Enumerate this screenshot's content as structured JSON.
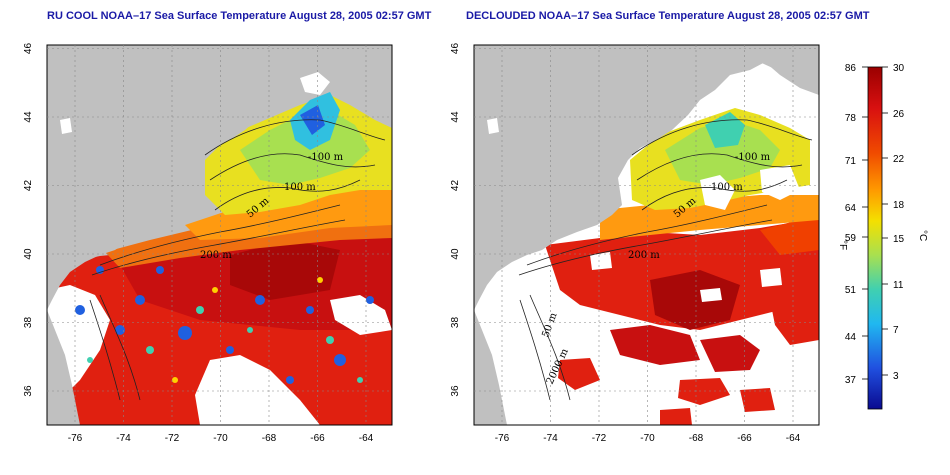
{
  "panels": [
    {
      "title": "RU COOL NOAA–17 Sea Surface Temperature August 28, 2005 02:57 GMT"
    },
    {
      "title": "DECLOUDED NOAA–17 Sea Surface Temperature August 28, 2005 02:57 GMT"
    }
  ],
  "axes": {
    "lon_ticks": [
      "-76",
      "-74",
      "-72",
      "-70",
      "-68",
      "-66",
      "-64"
    ],
    "lat_ticks": [
      "36",
      "38",
      "40",
      "42",
      "44",
      "46"
    ]
  },
  "contour_labels": {
    "left": [
      "-100 m",
      "100 m",
      "50 m",
      "200 m"
    ],
    "right": [
      "-100 m",
      "100 m",
      "50 m",
      "200 m",
      "50 m",
      "2000 m"
    ]
  },
  "colorbar": {
    "f_ticks": [
      "86",
      "78",
      "71",
      "64",
      "59",
      "51",
      "44",
      "37"
    ],
    "c_ticks": [
      "30",
      "26",
      "22",
      "18",
      "15",
      "11",
      "7",
      "3"
    ],
    "f_unit": "°F",
    "c_unit": "°C",
    "colors": [
      "#b00000",
      "#e01010",
      "#f04000",
      "#ff9000",
      "#ffd000",
      "#c8e040",
      "#40d0a0",
      "#20b0f0",
      "#2050e0",
      "#1010a0"
    ]
  },
  "colors": {
    "land": "#c0c0c0",
    "water_cloud": "#ffffff",
    "title": "#1a1aa6"
  }
}
